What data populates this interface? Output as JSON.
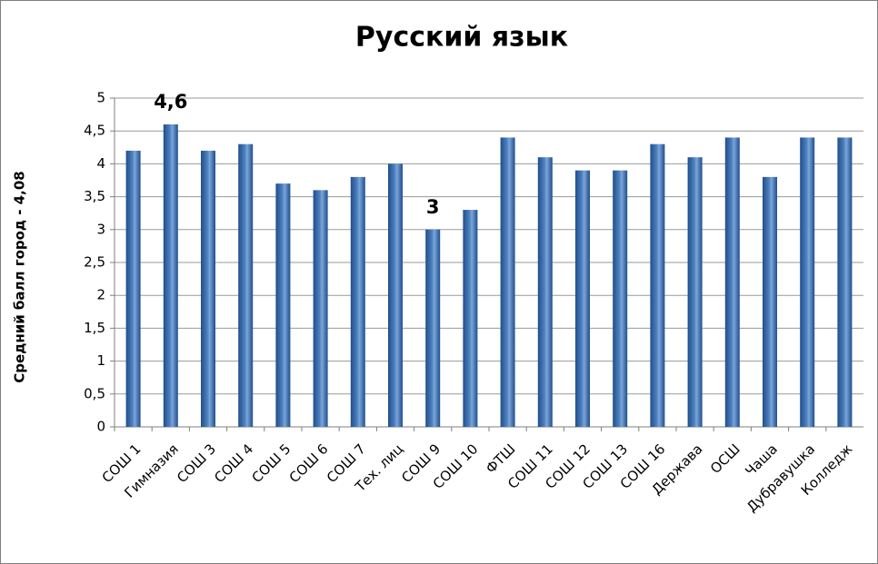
{
  "chart_data": {
    "type": "bar",
    "title": "Русский язык",
    "y_label": "Средний балл город - 4,08",
    "categories": [
      "СОШ 1",
      "Гимназия",
      "СОШ 3",
      "СОШ 4",
      "СОШ 5",
      "СОШ 6",
      "СОШ 7",
      "Тех. лиц",
      "СОШ 9",
      "СОШ 10",
      "ФТШ",
      "СОШ 11",
      "СОШ 12",
      "СОШ 13",
      "СОШ 16",
      "Держава",
      "ОСШ",
      "Чаша",
      "Дубравушка",
      "Колледж"
    ],
    "values": [
      4.2,
      4.6,
      4.2,
      4.3,
      3.7,
      3.6,
      3.8,
      4.0,
      3.0,
      3.3,
      4.4,
      4.1,
      3.9,
      3.9,
      4.3,
      4.1,
      4.4,
      3.8,
      4.4,
      4.4
    ],
    "value_labels": [
      null,
      "4,6",
      null,
      null,
      null,
      null,
      null,
      null,
      "3",
      null,
      null,
      null,
      null,
      null,
      null,
      null,
      null,
      null,
      null,
      null
    ],
    "color": "#4f81bd",
    "label_color": "#ff0000",
    "ylim": [
      0,
      5
    ],
    "yticks": [
      0,
      {
        "value": 0.5,
        "label": "0,5"
      },
      1,
      {
        "value": 1.5,
        "label": "1,5"
      },
      2,
      {
        "value": 2.5,
        "label": "2,5"
      },
      3,
      {
        "value": 3.5,
        "label": "3,5"
      },
      4,
      {
        "value": 4.5,
        "label": "4,5"
      },
      5
    ],
    "grid": true
  }
}
